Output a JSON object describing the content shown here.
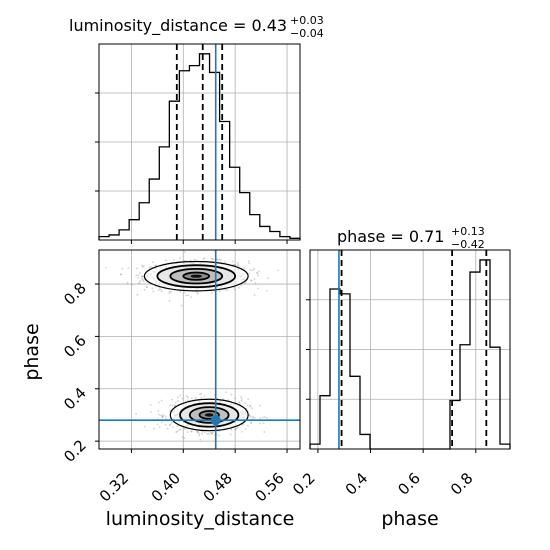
{
  "chart_data": {
    "type": "corner",
    "parameters": [
      "luminosity_distance",
      "phase"
    ],
    "colors": {
      "truth": "#1f77b4",
      "line": "#000000",
      "grid": "#b0b0b0",
      "scatter": "#7f7f7f"
    },
    "grid": true,
    "panels": {
      "luminosity_distance_hist": {
        "title": {
          "prefix": "luminosity_distance = 0.43",
          "sup": "+0.03",
          "sub": "−0.04"
        },
        "xlim": [
          0.27,
          0.58
        ],
        "bin_edges": [
          0.27,
          0.2855,
          0.301,
          0.3165,
          0.332,
          0.3475,
          0.363,
          0.3785,
          0.394,
          0.4095,
          0.425,
          0.4405,
          0.456,
          0.4715,
          0.487,
          0.5025,
          0.518,
          0.5335,
          0.549,
          0.5645,
          0.58
        ],
        "counts": [
          2,
          3,
          6,
          12,
          22,
          36,
          55,
          82,
          100,
          103,
          110,
          99,
          70,
          43,
          28,
          15,
          8,
          5,
          2,
          1
        ],
        "quantiles": [
          0.39,
          0.43,
          0.46
        ],
        "truth": 0.45
      },
      "phase_hist": {
        "title": {
          "prefix": "phase = 0.71",
          "sup": "+0.13",
          "sub": "−0.42"
        },
        "xlim": [
          0.17,
          0.93
        ],
        "bin_edges": [
          0.17,
          0.208,
          0.246,
          0.284,
          0.322,
          0.36,
          0.398,
          0.436,
          0.474,
          0.512,
          0.55,
          0.588,
          0.626,
          0.664,
          0.702,
          0.74,
          0.778,
          0.816,
          0.854,
          0.892,
          0.93
        ],
        "counts": [
          2,
          22,
          66,
          64,
          30,
          6,
          0,
          0,
          0,
          0,
          0,
          0,
          0,
          0,
          20,
          43,
          73,
          78,
          42,
          2
        ],
        "quantiles": [
          0.29,
          0.71,
          0.84
        ],
        "truth": 0.28
      },
      "joint": {
        "xlim": [
          0.27,
          0.58
        ],
        "ylim": [
          0.17,
          0.93
        ],
        "truth": [
          0.45,
          0.28
        ],
        "modes": [
          {
            "mean": [
              0.42,
              0.83
            ],
            "sd": [
              0.04,
              0.028
            ],
            "weight": 0.48
          },
          {
            "mean": [
              0.44,
              0.3
            ],
            "sd": [
              0.03,
              0.03
            ],
            "weight": 0.52
          }
        ]
      }
    },
    "xticks_luminosity_distance": [
      "0.32",
      "0.40",
      "0.48",
      "0.56"
    ],
    "xticks_phase": [
      "0.2",
      "0.4",
      "0.6",
      "0.8"
    ],
    "yticks_phase": [
      "0.2",
      "0.4",
      "0.6",
      "0.8"
    ],
    "xlabel_left": "luminosity_distance",
    "xlabel_right": "phase",
    "ylabel": "phase"
  }
}
